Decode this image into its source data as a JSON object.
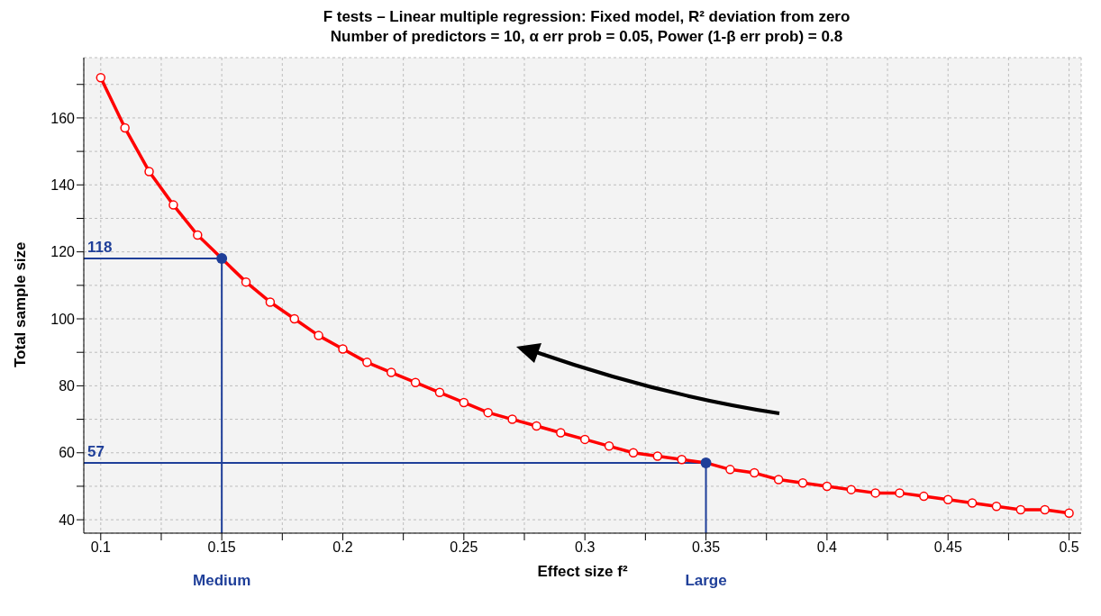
{
  "chart_data": {
    "type": "line",
    "title": "F tests – Linear multiple regression: Fixed model, R² deviation from zero",
    "subtitle": "Number of predictors = 10, α err prob = 0.05, Power (1-β err prob) = 0.8",
    "xlabel": "Effect size f²",
    "ylabel": "Total sample size",
    "x": [
      0.1,
      0.11,
      0.12,
      0.13,
      0.14,
      0.15,
      0.16,
      0.17,
      0.18,
      0.19,
      0.2,
      0.21,
      0.22,
      0.23,
      0.24,
      0.25,
      0.26,
      0.27,
      0.28,
      0.29,
      0.3,
      0.31,
      0.32,
      0.33,
      0.34,
      0.35,
      0.36,
      0.37,
      0.38,
      0.39,
      0.4,
      0.41,
      0.42,
      0.43,
      0.44,
      0.45,
      0.46,
      0.47,
      0.48,
      0.49,
      0.5
    ],
    "series": [
      {
        "color": "#ff0000",
        "marker": "circle",
        "values": [
          172,
          157,
          144,
          134,
          125,
          118,
          111,
          105,
          100,
          95,
          91,
          87,
          84,
          81,
          78,
          75,
          72,
          70,
          68,
          66,
          64,
          62,
          60,
          59,
          58,
          57,
          55,
          54,
          52,
          51,
          50,
          49,
          48,
          48,
          47,
          46,
          45,
          44,
          43,
          43,
          42
        ]
      },
      {
        "type": "scatter",
        "color": "#1f3f99",
        "x": [
          0.15,
          0.35
        ],
        "values": [
          118,
          57
        ]
      }
    ],
    "xlim": [
      0.093,
      0.505
    ],
    "ylim": [
      36,
      178
    ],
    "xticks": [
      0.1,
      {
        "value": 0.125,
        "label": null
      },
      0.15,
      {
        "value": 0.175,
        "label": null
      },
      0.2,
      {
        "value": 0.225,
        "label": null
      },
      0.25,
      {
        "value": 0.275,
        "label": null
      },
      0.3,
      {
        "value": 0.325,
        "label": null
      },
      0.35,
      {
        "value": 0.375,
        "label": null
      },
      0.4,
      {
        "value": 0.425,
        "label": null
      },
      0.45,
      {
        "value": 0.475,
        "label": null
      },
      0.5
    ],
    "yticks": [
      40,
      {
        "value": 50,
        "label": null
      },
      60,
      {
        "value": 70,
        "label": null
      },
      80,
      {
        "value": 90,
        "label": null
      },
      100,
      {
        "value": 110,
        "label": null
      },
      120,
      {
        "value": 130,
        "label": null
      },
      140,
      {
        "value": 150,
        "label": null
      },
      160,
      {
        "value": 170,
        "label": null
      }
    ],
    "ref_lines": [
      {
        "axis": "y",
        "value": 118,
        "label": "118",
        "color": "#1f3f99"
      },
      {
        "axis": "y",
        "value": 57,
        "label": "57",
        "color": "#1f3f99"
      },
      {
        "axis": "x",
        "value": 0.15,
        "label": "Medium",
        "color": "#1f3f99"
      },
      {
        "axis": "x",
        "value": 0.35,
        "label": "Large",
        "color": "#1f3f99"
      }
    ],
    "grid": true
  }
}
